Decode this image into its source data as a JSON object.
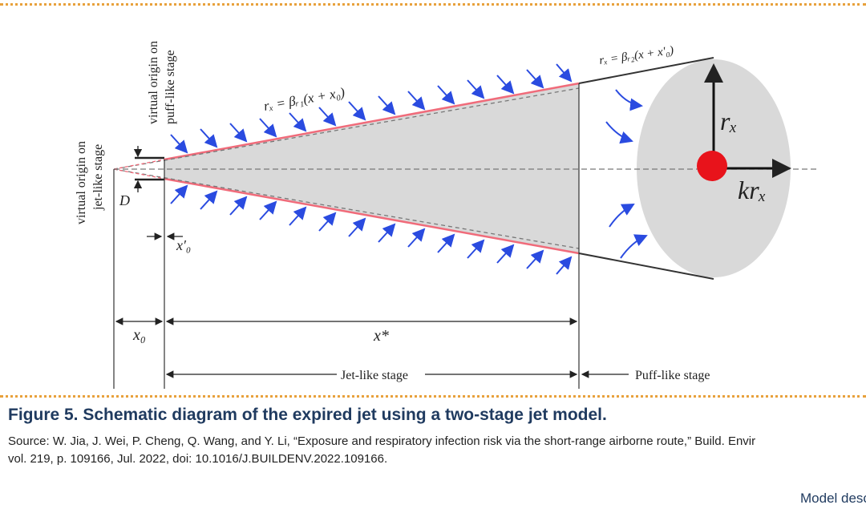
{
  "diagram": {
    "label_virtual_origin_jet": [
      "virtual origin on",
      "jet-like stage"
    ],
    "label_virtual_origin_puff": [
      "virtual origin on",
      "puff-like stage"
    ],
    "label_D": "D",
    "label_x0_prime": "x′₀",
    "label_x0": "x₀",
    "label_x_star": "x*",
    "label_jet_stage": "Jet-like stage",
    "label_puff_stage": "Puff-like stage",
    "equation_jet": "rₓ = βᵣ₁(x + x₀)",
    "equation_puff": "rₓ = βᵣ₂(x + x′₀)",
    "label_rx": "rₓ",
    "label_krx": "krₓ",
    "colors": {
      "entrainment_arrows": "#2a4be0",
      "jet_boundary": "#f06b7a",
      "center_dot": "#e8131b",
      "plume_fill": "#d9d9d9"
    }
  },
  "caption": {
    "title": "Figure 5. Schematic diagram of the expired jet using a two-stage jet model.",
    "source_line_1": "Source: W. Jia, J. Wei, P. Cheng, Q. Wang, and Y. Li, “Exposure and respiratory infection risk via the short-range airborne route,” Build. Envir",
    "source_line_2": "vol. 219, p. 109166, Jul. 2022, doi: 10.1016/J.BUILDENV.2022.109166."
  },
  "footer": {
    "link_text": "Model desc"
  }
}
